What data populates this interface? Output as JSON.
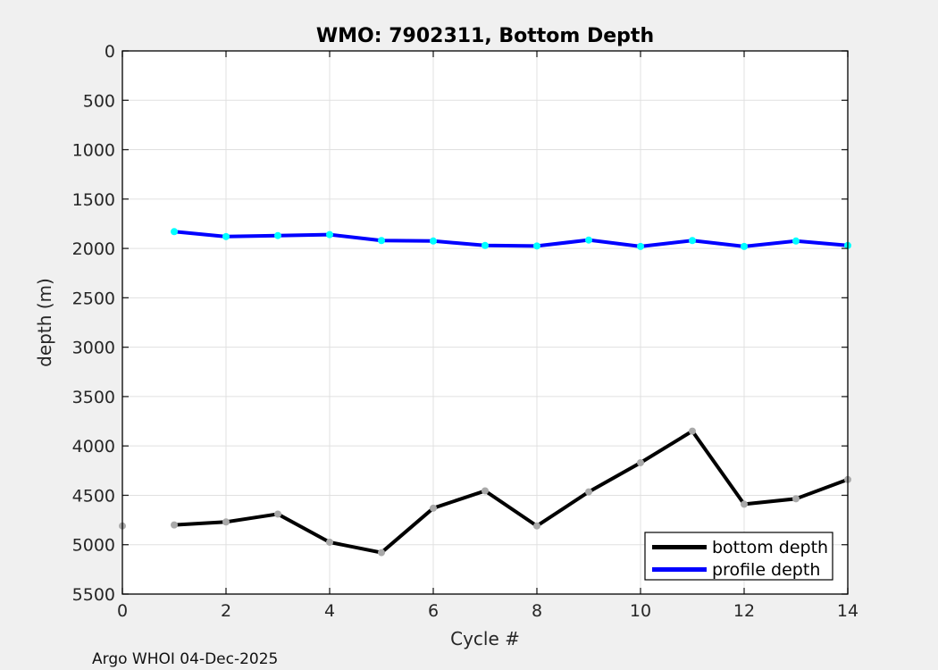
{
  "title": "WMO: 7902311, Bottom Depth",
  "footer": "Argo WHOI 04-Dec-2025",
  "chart_data": {
    "type": "line",
    "title": "WMO: 7902311, Bottom Depth",
    "xlabel": "Cycle #",
    "ylabel": "depth (m)",
    "xlim": [
      0,
      14
    ],
    "ylim": [
      0,
      5500
    ],
    "y_axis_direction": "reversed",
    "xticks": [
      0,
      2,
      4,
      6,
      8,
      10,
      12,
      14
    ],
    "yticks": [
      0,
      500,
      1000,
      1500,
      2000,
      2500,
      3000,
      3500,
      4000,
      4500,
      5000,
      5500
    ],
    "grid": true,
    "legend": {
      "position": "southeast",
      "entries": [
        "bottom depth",
        "profile depth"
      ]
    },
    "series": [
      {
        "name": "bottom depth",
        "color": "#000000",
        "marker_color": "#a9a9a9",
        "x": [
          0,
          1,
          2,
          3,
          4,
          5,
          6,
          7,
          8,
          9,
          10,
          11,
          12,
          13,
          14
        ],
        "y": [
          4810,
          4800,
          4770,
          4690,
          4975,
          5080,
          4630,
          4455,
          4810,
          4465,
          4170,
          3850,
          4590,
          4535,
          4340
        ],
        "line_from_x": 1
      },
      {
        "name": "profile depth",
        "color": "#0000ff",
        "marker_color": "#00ffff",
        "x": [
          1,
          2,
          3,
          4,
          5,
          6,
          7,
          8,
          9,
          10,
          11,
          12,
          13,
          14
        ],
        "y": [
          1830,
          1880,
          1870,
          1860,
          1920,
          1925,
          1970,
          1975,
          1915,
          1980,
          1920,
          1980,
          1925,
          1970
        ]
      }
    ]
  }
}
